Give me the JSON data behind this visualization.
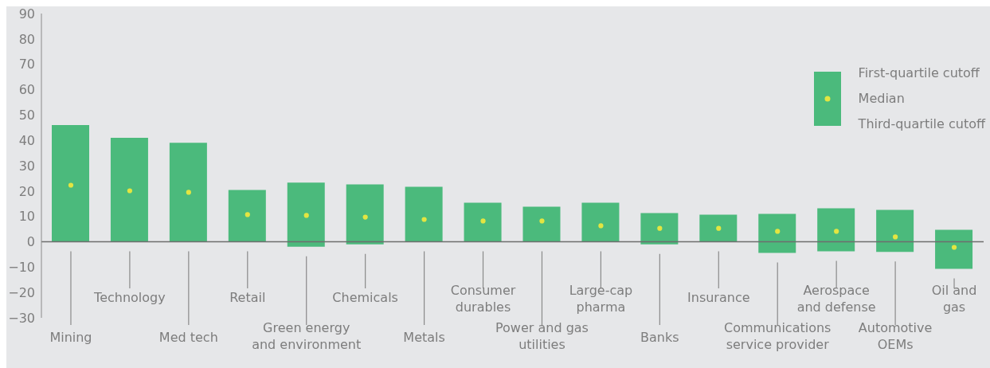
{
  "chart_data": {
    "type": "bar",
    "categories": [
      "Mining",
      "Technology",
      "Med tech",
      "Retail",
      "Green energy and environment",
      "Chemicals",
      "Metals",
      "Consumer durables",
      "Power and gas utilities",
      "Large-cap pharma",
      "Banks",
      "Insurance",
      "Communications service provider",
      "Aerospace and defense",
      "Automotive OEMs",
      "Oil and gas"
    ],
    "series": [
      {
        "color": "#4bba7c",
        "base": [
          0,
          0,
          0,
          0,
          -2,
          -1,
          0,
          0,
          0,
          0,
          -1,
          0,
          -4.4,
          -3.8,
          -4,
          -10.7
        ],
        "values": [
          46,
          41,
          39,
          20.4,
          25.3,
          23.6,
          21.7,
          15.4,
          13.8,
          15.4,
          12.3,
          10.7,
          15.4,
          17,
          16.6,
          15.4
        ]
      },
      {
        "type": "scatter",
        "name": "Median",
        "color": "#e3e541",
        "values": [
          22.3,
          20.1,
          19.5,
          10.7,
          10.4,
          9.7,
          8.8,
          8.2,
          8.2,
          6.3,
          5.3,
          5.3,
          4.1,
          4.1,
          1.9,
          -2.2
        ]
      }
    ],
    "annotations": [
      "First-quartile cutoff",
      "Third-quartile cutoff"
    ],
    "ylim": [
      -30,
      90
    ],
    "yticks": [
      -30,
      -20,
      -10,
      0,
      10,
      20,
      30,
      40,
      50,
      60,
      70,
      80,
      90
    ],
    "ref_lines": [
      {
        "axis": "y",
        "value": 0,
        "color": "#6e6e6e"
      }
    ],
    "grid": false,
    "legend": "right"
  }
}
